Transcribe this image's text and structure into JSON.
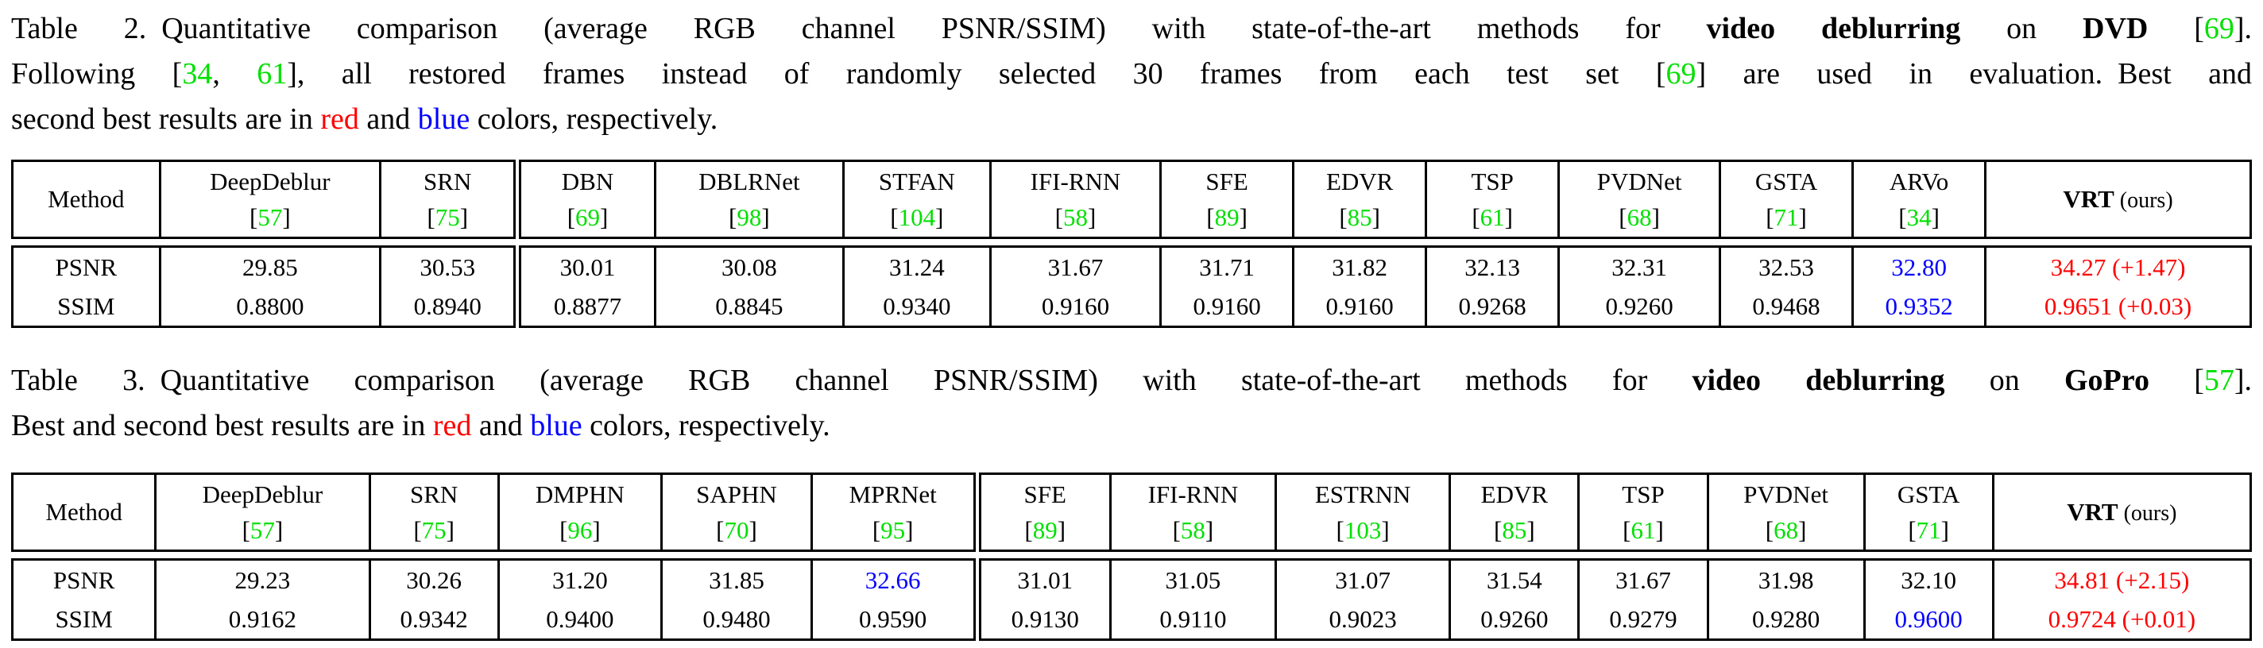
{
  "colors": {
    "citation": "#00e000",
    "best": "#ff0000",
    "second": "#0000ff",
    "text": "#000000",
    "background": "#ffffff",
    "rule": "#000000"
  },
  "misc": {
    "lb": "[",
    "rb": "]"
  },
  "table2": {
    "caption": {
      "line1": {
        "a": "Table 2. Quantitative comparison (average RGB channel PSNR/SSIM) with state-of-the-art methods for ",
        "b": "video deblurring",
        "c": " on ",
        "d": "DVD",
        "e": " [",
        "f": "69",
        "g": "]."
      },
      "line2": {
        "a": "Following [",
        "b": "34",
        "c": ", ",
        "d": "61",
        "e": "], all restored frames instead of randomly selected 30 frames from each test set [",
        "f": "69",
        "g": "] are used in evaluation. Best and"
      },
      "line3": {
        "a": "second best results are in ",
        "b": "red",
        "c": " and ",
        "d": "blue",
        "e": " colors, respectively."
      }
    },
    "method_label": "Method",
    "vrt_label": "VRT",
    "vrt_suffix": " (ours)",
    "psnr_label": "PSNR",
    "ssim_label": "SSIM",
    "columns": [
      {
        "name": "DeepDeblur",
        "ref": "57"
      },
      {
        "name": "SRN",
        "ref": "75"
      },
      {
        "name": "DBN",
        "ref": "69"
      },
      {
        "name": "DBLRNet",
        "ref": "98"
      },
      {
        "name": "STFAN",
        "ref": "104"
      },
      {
        "name": "IFI-RNN",
        "ref": "58"
      },
      {
        "name": "SFE",
        "ref": "89"
      },
      {
        "name": "EDVR",
        "ref": "85"
      },
      {
        "name": "TSP",
        "ref": "61"
      },
      {
        "name": "PVDNet",
        "ref": "68"
      },
      {
        "name": "GSTA",
        "ref": "71"
      },
      {
        "name": "ARVo",
        "ref": "34"
      }
    ],
    "psnr": [
      "29.85",
      "30.53",
      "30.01",
      "30.08",
      "31.24",
      "31.67",
      "31.71",
      "31.82",
      "32.13",
      "32.31",
      "32.53",
      "32.80",
      "34.27 (+1.47)"
    ],
    "ssim": [
      "0.8800",
      "0.8940",
      "0.8877",
      "0.8845",
      "0.9340",
      "0.9160",
      "0.9160",
      "0.9160",
      "0.9268",
      "0.9260",
      "0.9468",
      "0.9352",
      "0.9651 (+0.03)"
    ]
  },
  "table3": {
    "caption": {
      "line1": {
        "a": "Table 3. Quantitative comparison (average RGB channel PSNR/SSIM) with state-of-the-art methods for ",
        "b": "video deblurring",
        "c": " on ",
        "d": "GoPro",
        "e": " [",
        "f": "57",
        "g": "]."
      },
      "line2": {
        "a": "Best and second best results are in ",
        "b": "red",
        "c": " and ",
        "d": "blue",
        "e": " colors, respectively."
      }
    },
    "method_label": "Method",
    "vrt_label": "VRT",
    "vrt_suffix": " (ours)",
    "psnr_label": "PSNR",
    "ssim_label": "SSIM",
    "columns": [
      {
        "name": "DeepDeblur",
        "ref": "57"
      },
      {
        "name": "SRN",
        "ref": "75"
      },
      {
        "name": "DMPHN",
        "ref": "96"
      },
      {
        "name": "SAPHN",
        "ref": "70"
      },
      {
        "name": "MPRNet",
        "ref": "95"
      },
      {
        "name": "SFE",
        "ref": "89"
      },
      {
        "name": "IFI-RNN",
        "ref": "58"
      },
      {
        "name": "ESTRNN",
        "ref": "103"
      },
      {
        "name": "EDVR",
        "ref": "85"
      },
      {
        "name": "TSP",
        "ref": "61"
      },
      {
        "name": "PVDNet",
        "ref": "68"
      },
      {
        "name": "GSTA",
        "ref": "71"
      }
    ],
    "psnr": [
      "29.23",
      "30.26",
      "31.20",
      "31.85",
      "32.66",
      "31.01",
      "31.05",
      "31.07",
      "31.54",
      "31.67",
      "31.98",
      "32.10",
      "34.81 (+2.15)"
    ],
    "ssim": [
      "0.9162",
      "0.9342",
      "0.9400",
      "0.9480",
      "0.9590",
      "0.9130",
      "0.9110",
      "0.9023",
      "0.9260",
      "0.9279",
      "0.9280",
      "0.9600",
      "0.9724 (+0.01)"
    ]
  }
}
